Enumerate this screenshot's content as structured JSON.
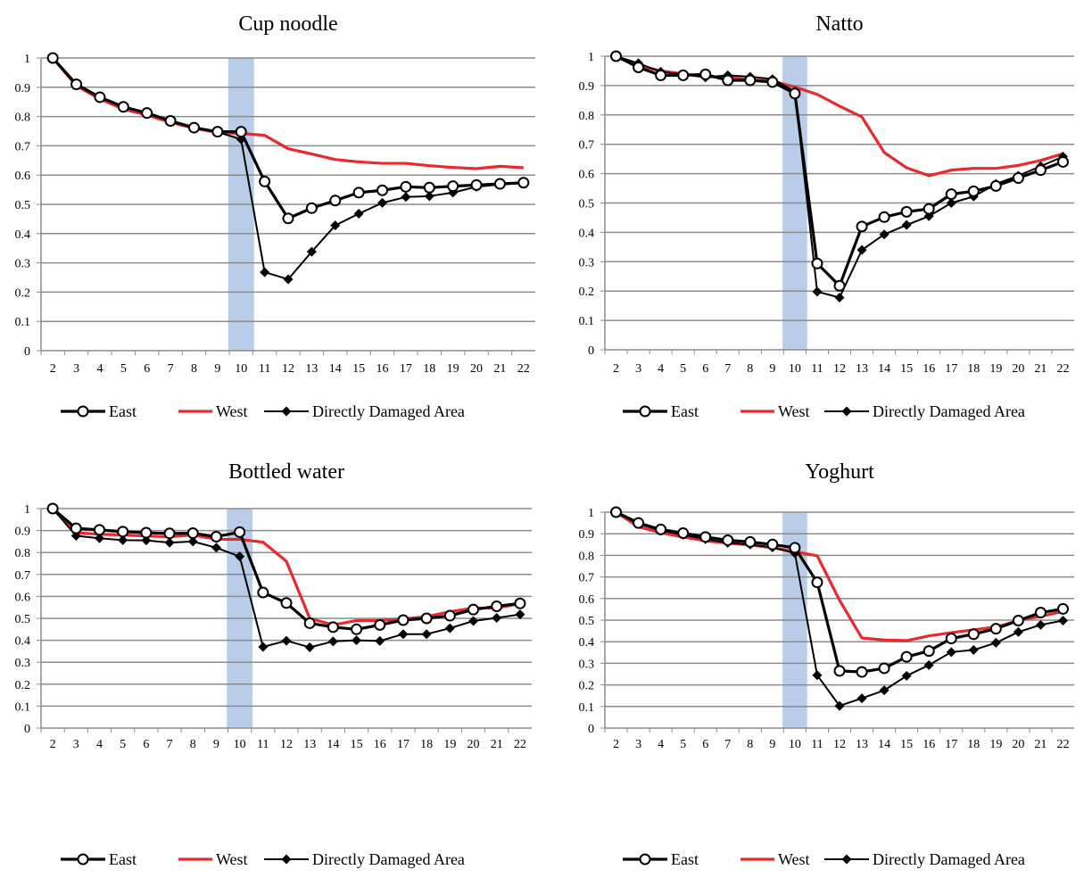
{
  "chart_data": [
    {
      "type": "line",
      "title": "Cup noodle",
      "xlabel": "",
      "ylabel": "",
      "x": [
        2,
        3,
        4,
        5,
        6,
        7,
        8,
        9,
        10,
        11,
        12,
        13,
        14,
        15,
        16,
        17,
        18,
        19,
        20,
        21,
        22
      ],
      "ylim": [
        0,
        1
      ],
      "yticks": [
        "0",
        "0.1",
        "0.2",
        "0.3",
        "0.4",
        "0.5",
        "0.6",
        "0.7",
        "0.8",
        "0.9",
        "1"
      ],
      "highlight_x": 10,
      "grid": true,
      "legend_position": "bottom",
      "series": [
        {
          "name": "East",
          "color": "#000000",
          "marker": "circle",
          "values": [
            1.0,
            0.91,
            0.866,
            0.833,
            0.812,
            0.785,
            0.762,
            0.748,
            0.748,
            0.578,
            0.452,
            0.487,
            0.513,
            0.54,
            0.548,
            0.56,
            0.557,
            0.562,
            0.566,
            0.57,
            0.574
          ]
        },
        {
          "name": "West",
          "color": "#e8292d",
          "marker": "none",
          "values": [
            1.0,
            0.905,
            0.86,
            0.825,
            0.805,
            0.78,
            0.76,
            0.745,
            0.742,
            0.736,
            0.69,
            0.672,
            0.653,
            0.645,
            0.64,
            0.64,
            0.632,
            0.626,
            0.622,
            0.63,
            0.625
          ]
        },
        {
          "name": "Directly Damaged Area",
          "color": "#000000",
          "marker": "diamond",
          "values": [
            1.0,
            0.91,
            0.865,
            0.835,
            0.812,
            0.785,
            0.76,
            0.747,
            0.722,
            0.268,
            0.244,
            0.338,
            0.428,
            0.468,
            0.505,
            0.525,
            0.528,
            0.54,
            0.56,
            0.568,
            0.572
          ]
        }
      ]
    },
    {
      "type": "line",
      "title": "Natto",
      "xlabel": "",
      "ylabel": "",
      "x": [
        2,
        3,
        4,
        5,
        6,
        7,
        8,
        9,
        10,
        11,
        12,
        13,
        14,
        15,
        16,
        17,
        18,
        19,
        20,
        21,
        22
      ],
      "ylim": [
        0,
        1
      ],
      "yticks": [
        "0",
        "0.1",
        "0.2",
        "0.3",
        "0.4",
        "0.5",
        "0.6",
        "0.7",
        "0.8",
        "0.9",
        "1"
      ],
      "highlight_x": 10,
      "grid": true,
      "legend_position": "bottom",
      "series": [
        {
          "name": "East",
          "color": "#000000",
          "marker": "circle",
          "values": [
            1.0,
            0.962,
            0.935,
            0.935,
            0.938,
            0.918,
            0.918,
            0.912,
            0.873,
            0.294,
            0.218,
            0.42,
            0.452,
            0.47,
            0.48,
            0.53,
            0.54,
            0.558,
            0.585,
            0.612,
            0.64
          ]
        },
        {
          "name": "West",
          "color": "#e8292d",
          "marker": "none",
          "values": [
            1.0,
            0.968,
            0.95,
            0.94,
            0.93,
            0.928,
            0.92,
            0.915,
            0.895,
            0.87,
            0.83,
            0.793,
            0.672,
            0.62,
            0.593,
            0.612,
            0.618,
            0.618,
            0.628,
            0.645,
            0.668
          ]
        },
        {
          "name": "Directly Damaged Area",
          "color": "#000000",
          "marker": "diamond",
          "values": [
            1.0,
            0.976,
            0.947,
            0.938,
            0.928,
            0.935,
            0.93,
            0.922,
            0.88,
            0.198,
            0.178,
            0.34,
            0.393,
            0.425,
            0.455,
            0.5,
            0.522,
            0.565,
            0.593,
            0.625,
            0.658
          ]
        }
      ]
    },
    {
      "type": "line",
      "title": "Bottled water",
      "xlabel": "",
      "ylabel": "",
      "x": [
        2,
        3,
        4,
        5,
        6,
        7,
        8,
        9,
        10,
        11,
        12,
        13,
        14,
        15,
        16,
        17,
        18,
        19,
        20,
        21,
        22
      ],
      "ylim": [
        0,
        1
      ],
      "yticks": [
        "0",
        "0.1",
        "0.2",
        "0.3",
        "0.4",
        "0.5",
        "0.6",
        "0.7",
        "0.8",
        "0.9",
        "1"
      ],
      "highlight_x": 10,
      "grid": true,
      "legend_position": "bottom",
      "series": [
        {
          "name": "East",
          "color": "#000000",
          "marker": "circle",
          "values": [
            1.0,
            0.91,
            0.903,
            0.895,
            0.89,
            0.887,
            0.888,
            0.872,
            0.893,
            0.618,
            0.57,
            0.478,
            0.46,
            0.45,
            0.47,
            0.492,
            0.5,
            0.512,
            0.54,
            0.555,
            0.568
          ]
        },
        {
          "name": "West",
          "color": "#e8292d",
          "marker": "none",
          "values": [
            1.0,
            0.89,
            0.883,
            0.88,
            0.875,
            0.872,
            0.88,
            0.86,
            0.86,
            0.847,
            0.76,
            0.5,
            0.47,
            0.49,
            0.49,
            0.497,
            0.508,
            0.53,
            0.547,
            0.547,
            0.567
          ]
        },
        {
          "name": "Directly Damaged Area",
          "color": "#000000",
          "marker": "diamond",
          "values": [
            1.0,
            0.876,
            0.865,
            0.856,
            0.855,
            0.845,
            0.85,
            0.822,
            0.782,
            0.37,
            0.398,
            0.368,
            0.395,
            0.4,
            0.397,
            0.428,
            0.428,
            0.455,
            0.488,
            0.502,
            0.518
          ]
        }
      ]
    },
    {
      "type": "line",
      "title": "Yoghurt",
      "xlabel": "",
      "ylabel": "",
      "x": [
        2,
        3,
        4,
        5,
        6,
        7,
        8,
        9,
        10,
        11,
        12,
        13,
        14,
        15,
        16,
        17,
        18,
        19,
        20,
        21,
        22
      ],
      "ylim": [
        0,
        1
      ],
      "yticks": [
        "0",
        "0.1",
        "0.2",
        "0.3",
        "0.4",
        "0.5",
        "0.6",
        "0.7",
        "0.8",
        "0.9",
        "1"
      ],
      "highlight_x": 10,
      "grid": true,
      "legend_position": "bottom",
      "series": [
        {
          "name": "East",
          "color": "#000000",
          "marker": "circle",
          "values": [
            1.0,
            0.95,
            0.92,
            0.903,
            0.885,
            0.87,
            0.862,
            0.85,
            0.835,
            0.675,
            0.265,
            0.26,
            0.277,
            0.33,
            0.357,
            0.415,
            0.435,
            0.46,
            0.498,
            0.535,
            0.552
          ]
        },
        {
          "name": "West",
          "color": "#e8292d",
          "marker": "none",
          "values": [
            1.0,
            0.932,
            0.905,
            0.885,
            0.867,
            0.857,
            0.848,
            0.835,
            0.818,
            0.798,
            0.592,
            0.417,
            0.408,
            0.405,
            0.427,
            0.442,
            0.455,
            0.468,
            0.498,
            0.518,
            0.54
          ]
        },
        {
          "name": "Directly Damaged Area",
          "color": "#000000",
          "marker": "diamond",
          "values": [
            1.0,
            0.945,
            0.915,
            0.895,
            0.875,
            0.858,
            0.85,
            0.837,
            0.81,
            0.245,
            0.103,
            0.138,
            0.175,
            0.242,
            0.292,
            0.352,
            0.362,
            0.395,
            0.445,
            0.478,
            0.498
          ]
        }
      ]
    }
  ]
}
